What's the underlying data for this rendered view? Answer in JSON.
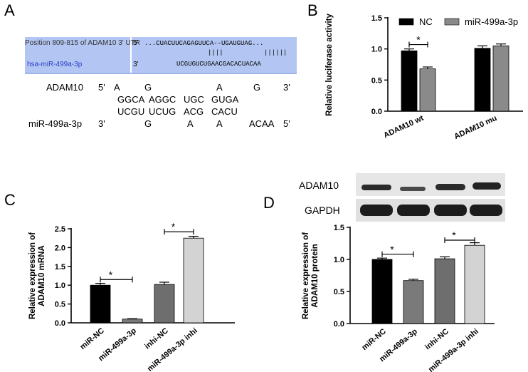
{
  "panels": {
    "a": {
      "letter": "A",
      "box": {
        "position_label": "Position 809-815 of ADAM10 3' UTR",
        "mirna_label": "hsa-miR-499a-3p",
        "five_prime": "5'",
        "three_prime": "3'",
        "utr_seq": "...CUACUUCAGAGUUCA--UGAUGUAG...",
        "pair_marks_1": "||||",
        "pair_marks_2": "||||||",
        "mirna_seq": "UCGUGUCUGAACGACACUACAA"
      },
      "alignment": {
        "adam10_label": "ADAM10",
        "adam10_5": "5'",
        "adam10_3": "3'",
        "adam10_bulge": [
          "A",
          "G",
          "A",
          "G"
        ],
        "adam10_paired": [
          "GGCA",
          "AGGC",
          "UGC",
          "GUGA"
        ],
        "mir_paired": [
          "UCGU",
          "UCUG",
          "ACG",
          "CACU"
        ],
        "mir_label": "miR-499a-3p",
        "mir_3": "3'",
        "mir_5": "5'",
        "mir_bulge": [
          "G",
          "A",
          "A",
          "ACAA"
        ]
      }
    },
    "d": {
      "letter": "D",
      "blot_labels": [
        "ADAM10",
        "GAPDH"
      ]
    }
  },
  "colors": {
    "black_bar": "#000000",
    "mid_gray_bar": "#7a7a7a",
    "dark_gray_bar": "#6e6e6e",
    "light_gray_bar": "#d3d3d3",
    "alignment_box": "#b3c6f3"
  },
  "chart_data": [
    {
      "id": "B",
      "letter": "B",
      "type": "bar",
      "categories": [
        "ADAM10 wt",
        "ADAM10 mu"
      ],
      "series": [
        {
          "name": "NC",
          "values": [
            0.97,
            1.01
          ],
          "errors": [
            0.03,
            0.04
          ],
          "color": "#000000"
        },
        {
          "name": "miR-499a-3p",
          "values": [
            0.68,
            1.05
          ],
          "errors": [
            0.03,
            0.03
          ],
          "color": "#8a8a8a"
        }
      ],
      "ylabel": "Relative luciferase activity",
      "ylim": [
        0,
        1.5
      ],
      "yticks": [
        "0.0",
        "0.5",
        "1.0",
        "1.5"
      ],
      "legend": "top",
      "significance": [
        {
          "between": [
            "ADAM10 wt NC",
            "ADAM10 wt miR-499a-3p"
          ],
          "label": "*"
        }
      ]
    },
    {
      "id": "C",
      "letter": "C",
      "type": "bar",
      "categories": [
        "miR-NC",
        "miR-499a-3p",
        "inhi-NC",
        "miR-499a-3p inhi"
      ],
      "values": [
        1.0,
        0.1,
        1.02,
        2.25
      ],
      "errors": [
        0.05,
        0.01,
        0.06,
        0.05
      ],
      "colors": [
        "#000000",
        "#7a7a7a",
        "#6e6e6e",
        "#d3d3d3"
      ],
      "ylabel": "Relative expression of ADAM10 mRNA",
      "ylim": [
        0,
        2.5
      ],
      "yticks": [
        "0.0",
        "0.5",
        "1.0",
        "1.5",
        "2.0",
        "2.5"
      ],
      "significance": [
        {
          "between": [
            "miR-NC",
            "miR-499a-3p"
          ],
          "label": "*"
        },
        {
          "between": [
            "inhi-NC",
            "miR-499a-3p inhi"
          ],
          "label": "*"
        }
      ]
    },
    {
      "id": "D",
      "letter": "D",
      "type": "bar",
      "categories": [
        "miR-NC",
        "miR-499a-3p",
        "inhi-NC",
        "miR-499a-3p inhi"
      ],
      "values": [
        1.0,
        0.67,
        1.01,
        1.22
      ],
      "errors": [
        0.02,
        0.02,
        0.03,
        0.04
      ],
      "colors": [
        "#000000",
        "#7a7a7a",
        "#6e6e6e",
        "#d3d3d3"
      ],
      "ylabel": "Relative expression of ADAM10 protein",
      "ylim": [
        0,
        1.5
      ],
      "yticks": [
        "0.0",
        "0.5",
        "1.0",
        "1.5"
      ],
      "significance": [
        {
          "between": [
            "miR-NC",
            "miR-499a-3p"
          ],
          "label": "*"
        },
        {
          "between": [
            "inhi-NC",
            "miR-499a-3p inhi"
          ],
          "label": "*"
        }
      ]
    }
  ]
}
